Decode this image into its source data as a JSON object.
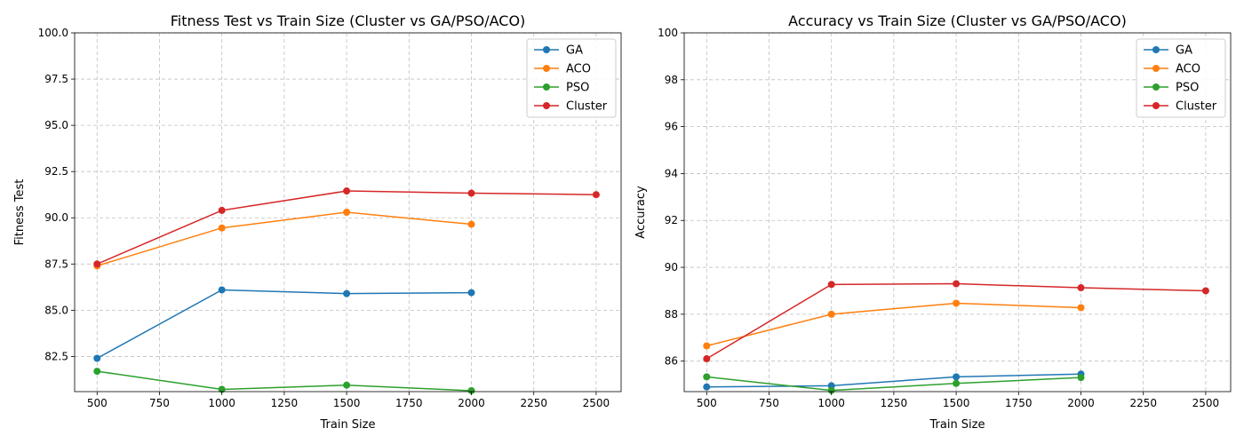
{
  "chart_data": [
    {
      "type": "line",
      "title": "Fitness Test vs Train Size (Cluster vs GA/PSO/ACO)",
      "xlabel": "Train Size",
      "ylabel": "Fitness Test",
      "xlim": [
        410,
        2600
      ],
      "ylim": [
        80.6,
        100.0
      ],
      "xticks": [
        "500",
        "750",
        "1000",
        "1250",
        "1500",
        "1750",
        "2000",
        "2250",
        "2500"
      ],
      "yticks": [
        "82.5",
        "85.0",
        "87.5",
        "90.0",
        "92.5",
        "95.0",
        "97.5",
        "100.0"
      ],
      "grid": true,
      "legend_position": "top-right",
      "series": [
        {
          "name": "GA",
          "color": "#1f77b4",
          "x": [
            500,
            1000,
            1500,
            2000
          ],
          "y": [
            82.4,
            86.1,
            85.9,
            85.95
          ]
        },
        {
          "name": "ACO",
          "color": "#ff7f0e",
          "x": [
            500,
            1000,
            1500,
            2000
          ],
          "y": [
            87.4,
            89.45,
            90.3,
            89.65
          ]
        },
        {
          "name": "PSO",
          "color": "#2ca02c",
          "x": [
            500,
            1000,
            1500,
            2000
          ],
          "y": [
            81.7,
            80.72,
            80.95,
            80.65
          ]
        },
        {
          "name": "Cluster",
          "color": "#d62728",
          "x": [
            500,
            1000,
            1500,
            2000,
            2500
          ],
          "y": [
            87.5,
            90.4,
            91.45,
            91.33,
            91.25
          ]
        }
      ]
    },
    {
      "type": "line",
      "title": "Accuracy vs Train Size (Cluster vs GA/PSO/ACO)",
      "xlabel": "Train Size",
      "ylabel": "Accuracy",
      "xlim": [
        410,
        2600
      ],
      "ylim": [
        84.7,
        100.0
      ],
      "xticks": [
        "500",
        "750",
        "1000",
        "1250",
        "1500",
        "1750",
        "2000",
        "2250",
        "2500"
      ],
      "yticks": [
        "86",
        "88",
        "90",
        "92",
        "94",
        "96",
        "98",
        "100"
      ],
      "grid": true,
      "legend_position": "top-right",
      "series": [
        {
          "name": "GA",
          "color": "#1f77b4",
          "x": [
            500,
            1000,
            1500,
            2000
          ],
          "y": [
            84.9,
            84.95,
            85.33,
            85.45
          ]
        },
        {
          "name": "ACO",
          "color": "#ff7f0e",
          "x": [
            500,
            1000,
            1500,
            2000
          ],
          "y": [
            86.65,
            88.0,
            88.47,
            88.28
          ]
        },
        {
          "name": "PSO",
          "color": "#2ca02c",
          "x": [
            500,
            1000,
            1500,
            2000
          ],
          "y": [
            85.33,
            84.75,
            85.05,
            85.3
          ]
        },
        {
          "name": "Cluster",
          "color": "#d62728",
          "x": [
            500,
            1000,
            1500,
            2000,
            2500
          ],
          "y": [
            86.1,
            89.27,
            89.3,
            89.13,
            89.0
          ]
        }
      ]
    }
  ]
}
